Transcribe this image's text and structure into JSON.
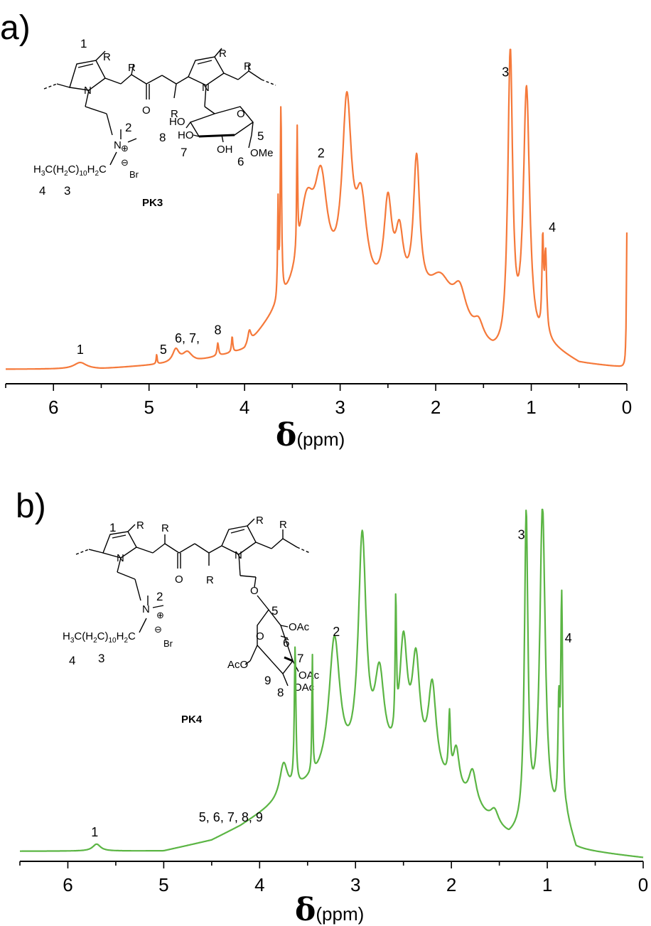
{
  "panels": [
    {
      "letter": "a)",
      "compound": "PK3",
      "color": "#F5793A",
      "struct": {
        "n1": "1",
        "n2": "2",
        "n3": "3",
        "n4": "4",
        "n5": "5",
        "n6": "6",
        "n7": "7",
        "n8": "8",
        "alkyl_main": "H₃C(H₂C)₁₀H₂C",
        "alkyl_prefix": "H",
        "alkyl_sub3": "3",
        "alkyl_c": "C(H",
        "alkyl_sub2": "2",
        "alkyl_c2": "C)",
        "alkyl_sub10": "10",
        "alkyl_h": "H",
        "alkyl_sub2b": "2",
        "alkyl_end": "C",
        "br": "Br",
        "plus": "⊕",
        "minus": "⊖",
        "r": "R",
        "n": "N",
        "o": "O",
        "ho": "HO",
        "oh": "OH",
        "ome": "OMe"
      }
    },
    {
      "letter": "b)",
      "compound": "PK4",
      "color": "#5BB544",
      "struct": {
        "n1": "1",
        "n2": "2",
        "n3": "3",
        "n4": "4",
        "n5": "5",
        "n6": "6",
        "n7": "7",
        "n8": "8",
        "n9": "9",
        "alkyl_prefix": "H",
        "alkyl_sub3": "3",
        "alkyl_c": "C(H",
        "alkyl_sub2": "2",
        "alkyl_c2": "C)",
        "alkyl_sub10": "10",
        "alkyl_h": "H",
        "alkyl_sub2b": "2",
        "alkyl_end": "C",
        "br": "Br",
        "plus": "⊕",
        "minus": "⊖",
        "r": "R",
        "n": "N",
        "o": "O",
        "oac": "OAc",
        "aco": "AcO"
      }
    }
  ],
  "chart_data": [
    {
      "type": "line",
      "title": "",
      "xlabel_symbol": "δ",
      "xlabel_unit": "(ppm)",
      "xlim": [
        6.5,
        0
      ],
      "x_reversed": true,
      "xticks": [
        "6",
        "5",
        "4",
        "3",
        "2",
        "1",
        "0"
      ],
      "series": [
        {
          "color": "#F5793A",
          "peaks": [
            {
              "x": 0.0,
              "h": 0.42,
              "w": 0.006
            },
            {
              "x": 0.85,
              "h": 0.25,
              "w": 0.014
            },
            {
              "x": 0.88,
              "h": 0.28,
              "w": 0.01
            },
            {
              "x": 1.05,
              "h": 0.8,
              "w": 0.04
            },
            {
              "x": 1.22,
              "h": 0.92,
              "w": 0.03
            },
            {
              "x": 1.55,
              "h": 0.05,
              "w": 0.06
            },
            {
              "x": 1.75,
              "h": 0.1,
              "w": 0.08
            },
            {
              "x": 1.95,
              "h": 0.12,
              "w": 0.15
            },
            {
              "x": 2.2,
              "h": 0.42,
              "w": 0.04
            },
            {
              "x": 2.38,
              "h": 0.18,
              "w": 0.05
            },
            {
              "x": 2.5,
              "h": 0.28,
              "w": 0.05
            },
            {
              "x": 2.78,
              "h": 0.26,
              "w": 0.07
            },
            {
              "x": 2.93,
              "h": 0.56,
              "w": 0.06
            },
            {
              "x": 3.2,
              "h": 0.3,
              "w": 0.08
            },
            {
              "x": 3.35,
              "h": 0.25,
              "w": 0.1
            },
            {
              "x": 3.45,
              "h": 0.38,
              "w": 0.006
            },
            {
              "x": 3.62,
              "h": 0.6,
              "w": 0.008
            },
            {
              "x": 3.65,
              "h": 0.3,
              "w": 0.006
            },
            {
              "x": 3.95,
              "h": 0.04,
              "w": 0.02
            },
            {
              "x": 4.13,
              "h": 0.05,
              "w": 0.008
            },
            {
              "x": 4.28,
              "h": 0.04,
              "w": 0.01
            },
            {
              "x": 4.6,
              "h": 0.03,
              "w": 0.06
            },
            {
              "x": 4.72,
              "h": 0.04,
              "w": 0.04
            },
            {
              "x": 4.92,
              "h": 0.03,
              "w": 0.006
            },
            {
              "x": 5.72,
              "h": 0.02,
              "w": 0.08
            }
          ],
          "baseline": [
            {
              "x": 6.5,
              "y": 0.0
            },
            {
              "x": 5.5,
              "y": 0.0
            },
            {
              "x": 4.5,
              "y": 0.02
            },
            {
              "x": 4.0,
              "y": 0.05
            },
            {
              "x": 3.7,
              "y": 0.15
            },
            {
              "x": 3.4,
              "y": 0.22
            },
            {
              "x": 2.8,
              "y": 0.2
            },
            {
              "x": 2.2,
              "y": 0.18
            },
            {
              "x": 1.7,
              "y": 0.1
            },
            {
              "x": 1.4,
              "y": 0.03
            },
            {
              "x": 1.3,
              "y": 0.02
            },
            {
              "x": 0.8,
              "y": 0.06
            },
            {
              "x": 0.5,
              "y": 0.015
            },
            {
              "x": 0.1,
              "y": 0.005
            },
            {
              "x": 0.0,
              "y": 0.0
            }
          ]
        }
      ],
      "annotations": [
        {
          "label": "1",
          "x": 5.72
        },
        {
          "label": "5",
          "x": 4.85
        },
        {
          "label": "6, 7,",
          "x": 4.6
        },
        {
          "label": "8",
          "x": 4.28
        },
        {
          "label": "2",
          "x": 3.2
        },
        {
          "label": "3",
          "x": 1.27
        },
        {
          "label": "4",
          "x": 0.78
        }
      ]
    },
    {
      "type": "line",
      "title": "",
      "xlabel_symbol": "δ",
      "xlabel_unit": "(ppm)",
      "xlim": [
        6.5,
        0
      ],
      "x_reversed": true,
      "xticks": [
        "6",
        "5",
        "4",
        "3",
        "2",
        "1",
        "0"
      ],
      "series": [
        {
          "color": "#5BB544",
          "peaks": [
            {
              "x": 0.85,
              "h": 0.62,
              "w": 0.012
            },
            {
              "x": 0.88,
              "h": 0.28,
              "w": 0.01
            },
            {
              "x": 1.05,
              "h": 0.92,
              "w": 0.035
            },
            {
              "x": 1.22,
              "h": 0.9,
              "w": 0.022
            },
            {
              "x": 1.55,
              "h": 0.04,
              "w": 0.05
            },
            {
              "x": 1.78,
              "h": 0.1,
              "w": 0.05
            },
            {
              "x": 1.95,
              "h": 0.12,
              "w": 0.04
            },
            {
              "x": 2.02,
              "h": 0.18,
              "w": 0.012
            },
            {
              "x": 2.2,
              "h": 0.25,
              "w": 0.05
            },
            {
              "x": 2.37,
              "h": 0.3,
              "w": 0.05
            },
            {
              "x": 2.5,
              "h": 0.35,
              "w": 0.05
            },
            {
              "x": 2.58,
              "h": 0.38,
              "w": 0.008
            },
            {
              "x": 2.75,
              "h": 0.25,
              "w": 0.06
            },
            {
              "x": 2.93,
              "h": 0.66,
              "w": 0.05
            },
            {
              "x": 3.22,
              "h": 0.4,
              "w": 0.07
            },
            {
              "x": 3.45,
              "h": 0.34,
              "w": 0.006
            },
            {
              "x": 3.63,
              "h": 0.4,
              "w": 0.01
            },
            {
              "x": 3.75,
              "h": 0.1,
              "w": 0.05
            },
            {
              "x": 5.7,
              "h": 0.02,
              "w": 0.05
            }
          ],
          "baseline": [
            {
              "x": 6.5,
              "y": 0.0
            },
            {
              "x": 5.0,
              "y": 0.0
            },
            {
              "x": 4.5,
              "y": 0.03
            },
            {
              "x": 4.2,
              "y": 0.07
            },
            {
              "x": 3.9,
              "y": 0.12
            },
            {
              "x": 3.5,
              "y": 0.18
            },
            {
              "x": 2.8,
              "y": 0.22
            },
            {
              "x": 2.2,
              "y": 0.2
            },
            {
              "x": 1.7,
              "y": 0.1
            },
            {
              "x": 1.4,
              "y": 0.03
            },
            {
              "x": 1.3,
              "y": 0.04
            },
            {
              "x": 0.8,
              "y": 0.08
            },
            {
              "x": 0.7,
              "y": 0.0
            },
            {
              "x": 0.0,
              "y": -0.02
            }
          ]
        }
      ],
      "annotations": [
        {
          "label": "1",
          "x": 5.72
        },
        {
          "label": "5, 6, 7, 8, 9",
          "x": 4.3
        },
        {
          "label": "2",
          "x": 3.2
        },
        {
          "label": "3",
          "x": 1.27
        },
        {
          "label": "4",
          "x": 0.78
        }
      ]
    }
  ]
}
